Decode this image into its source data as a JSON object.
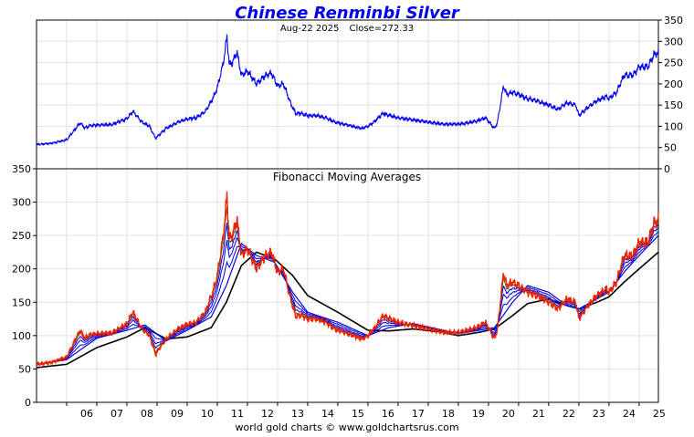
{
  "chart_data": [
    {
      "type": "line",
      "title": "Chinese Renminbi Silver",
      "subtitle": "Aug-22  2025   Close=272.33",
      "date_label": "Aug-22  2025",
      "close_label": "Close=272.33",
      "close": 272.33,
      "ylim": [
        0,
        350
      ],
      "y_ticks": [
        "0",
        "50",
        "100",
        "150",
        "200",
        "250",
        "300",
        "350"
      ],
      "y_axis_side": "right",
      "grid": true,
      "x_ticks": [
        "06",
        "07",
        "08",
        "09",
        "10",
        "11",
        "12",
        "13",
        "14",
        "15",
        "16",
        "17",
        "18",
        "19",
        "20",
        "21",
        "22",
        "23",
        "24",
        "25"
      ],
      "series": [
        {
          "color": "#0000ee",
          "x": [
            2005.0,
            2005.5,
            2006.0,
            2006.3,
            2006.45,
            2006.6,
            2006.8,
            2007.0,
            2007.5,
            2008.0,
            2008.2,
            2008.5,
            2008.75,
            2008.95,
            2009.3,
            2009.7,
            2010.0,
            2010.3,
            2010.6,
            2010.85,
            2011.0,
            2011.2,
            2011.32,
            2011.4,
            2011.5,
            2011.65,
            2011.8,
            2012.0,
            2012.3,
            2012.6,
            2012.8,
            2013.0,
            2013.2,
            2013.4,
            2013.6,
            2013.8,
            2014.0,
            2014.3,
            2014.6,
            2014.9,
            2015.2,
            2015.5,
            2015.8,
            2016.0,
            2016.2,
            2016.5,
            2016.75,
            2017.0,
            2017.5,
            2018.0,
            2018.5,
            2019.0,
            2019.3,
            2019.6,
            2019.9,
            2020.2,
            2020.3,
            2020.5,
            2020.6,
            2020.8,
            2021.0,
            2021.3,
            2021.6,
            2022.0,
            2022.3,
            2022.6,
            2022.9,
            2023.0,
            2023.3,
            2023.6,
            2023.9,
            2024.0,
            2024.25,
            2024.5,
            2024.8,
            2025.0,
            2025.3,
            2025.5,
            2025.64
          ],
          "values": [
            57,
            60,
            68,
            95,
            108,
            96,
            102,
            103,
            104,
            118,
            135,
            110,
            100,
            72,
            95,
            110,
            117,
            120,
            135,
            165,
            190,
            250,
            310,
            245,
            250,
            275,
            220,
            230,
            200,
            220,
            225,
            195,
            200,
            160,
            130,
            130,
            125,
            125,
            120,
            110,
            105,
            100,
            95,
            100,
            110,
            130,
            125,
            120,
            115,
            110,
            105,
            105,
            108,
            112,
            120,
            95,
            110,
            195,
            175,
            180,
            175,
            165,
            160,
            150,
            140,
            155,
            150,
            125,
            145,
            160,
            170,
            165,
            180,
            220,
            220,
            240,
            240,
            270,
            272
          ]
        }
      ]
    },
    {
      "type": "line",
      "title": "Fibonacci Moving Averages",
      "ylim": [
        0,
        350
      ],
      "y_ticks": [
        "0",
        "50",
        "100",
        "150",
        "200",
        "250",
        "300",
        "350"
      ],
      "y_axis_side": "left",
      "grid": true,
      "x_ticks": [
        "06",
        "07",
        "08",
        "09",
        "10",
        "11",
        "12",
        "13",
        "14",
        "15",
        "16",
        "17",
        "18",
        "19",
        "20",
        "21",
        "22",
        "23",
        "24",
        "25"
      ],
      "price_color": "#ee2200",
      "short_ma_color": "#4c7a22",
      "mid_ma_color": "#0000dd",
      "long_ma_color": "#000000",
      "series": [
        {
          "color": "#ee2200",
          "x": [
            2005.0,
            2005.5,
            2006.0,
            2006.3,
            2006.45,
            2006.6,
            2006.8,
            2007.0,
            2007.5,
            2008.0,
            2008.2,
            2008.5,
            2008.75,
            2008.95,
            2009.3,
            2009.7,
            2010.0,
            2010.3,
            2010.6,
            2010.85,
            2011.0,
            2011.2,
            2011.32,
            2011.4,
            2011.5,
            2011.65,
            2011.8,
            2012.0,
            2012.3,
            2012.6,
            2012.8,
            2013.0,
            2013.2,
            2013.4,
            2013.6,
            2013.8,
            2014.0,
            2014.3,
            2014.6,
            2014.9,
            2015.2,
            2015.5,
            2015.8,
            2016.0,
            2016.2,
            2016.5,
            2016.75,
            2017.0,
            2017.5,
            2018.0,
            2018.5,
            2019.0,
            2019.3,
            2019.6,
            2019.9,
            2020.2,
            2020.3,
            2020.5,
            2020.6,
            2020.8,
            2021.0,
            2021.3,
            2021.6,
            2022.0,
            2022.3,
            2022.6,
            2022.9,
            2023.0,
            2023.3,
            2023.6,
            2023.9,
            2024.0,
            2024.25,
            2024.5,
            2024.8,
            2025.0,
            2025.3,
            2025.5,
            2025.64
          ],
          "values": [
            57,
            60,
            68,
            95,
            108,
            96,
            102,
            103,
            104,
            118,
            135,
            110,
            100,
            72,
            95,
            110,
            117,
            120,
            135,
            165,
            190,
            250,
            310,
            245,
            250,
            275,
            220,
            230,
            200,
            220,
            225,
            195,
            200,
            160,
            130,
            130,
            125,
            125,
            120,
            110,
            105,
            100,
            95,
            100,
            110,
            130,
            125,
            120,
            115,
            110,
            105,
            105,
            108,
            112,
            120,
            95,
            110,
            195,
            175,
            180,
            175,
            165,
            160,
            150,
            140,
            155,
            150,
            125,
            145,
            160,
            170,
            165,
            180,
            220,
            220,
            240,
            240,
            270,
            272
          ]
        },
        {
          "color": "#0000dd",
          "x": [
            2005.0,
            2006.0,
            2007.0,
            2008.0,
            2008.6,
            2009.3,
            2010.0,
            2010.8,
            2011.3,
            2011.8,
            2012.3,
            2012.9,
            2013.5,
            2014.0,
            2015.0,
            2016.0,
            2016.7,
            2017.5,
            2018.5,
            2019.0,
            2019.7,
            2020.2,
            2020.8,
            2021.3,
            2022.0,
            2022.6,
            2023.0,
            2023.6,
            2024.0,
            2024.5,
            2025.0,
            2025.64
          ],
          "values": [
            56,
            64,
            96,
            108,
            116,
            92,
            108,
            128,
            175,
            238,
            220,
            210,
            165,
            135,
            120,
            100,
            112,
            118,
            108,
            103,
            108,
            112,
            150,
            175,
            165,
            145,
            140,
            155,
            165,
            195,
            220,
            250
          ]
        },
        {
          "color": "#000000",
          "x": [
            2005.0,
            2006.0,
            2007.0,
            2008.0,
            2008.6,
            2009.3,
            2010.0,
            2010.8,
            2011.3,
            2011.8,
            2012.3,
            2012.9,
            2013.5,
            2014.0,
            2015.0,
            2016.0,
            2016.7,
            2017.5,
            2018.5,
            2019.0,
            2019.7,
            2020.2,
            2020.8,
            2021.3,
            2022.0,
            2022.6,
            2023.0,
            2023.6,
            2024.0,
            2024.5,
            2025.0,
            2025.64
          ],
          "values": [
            52,
            57,
            82,
            98,
            112,
            95,
            98,
            112,
            150,
            205,
            225,
            215,
            190,
            160,
            135,
            108,
            107,
            110,
            105,
            100,
            105,
            110,
            130,
            148,
            155,
            145,
            140,
            150,
            158,
            180,
            200,
            225
          ]
        }
      ]
    }
  ],
  "footer": "world gold charts © www.goldchartsrus.com"
}
